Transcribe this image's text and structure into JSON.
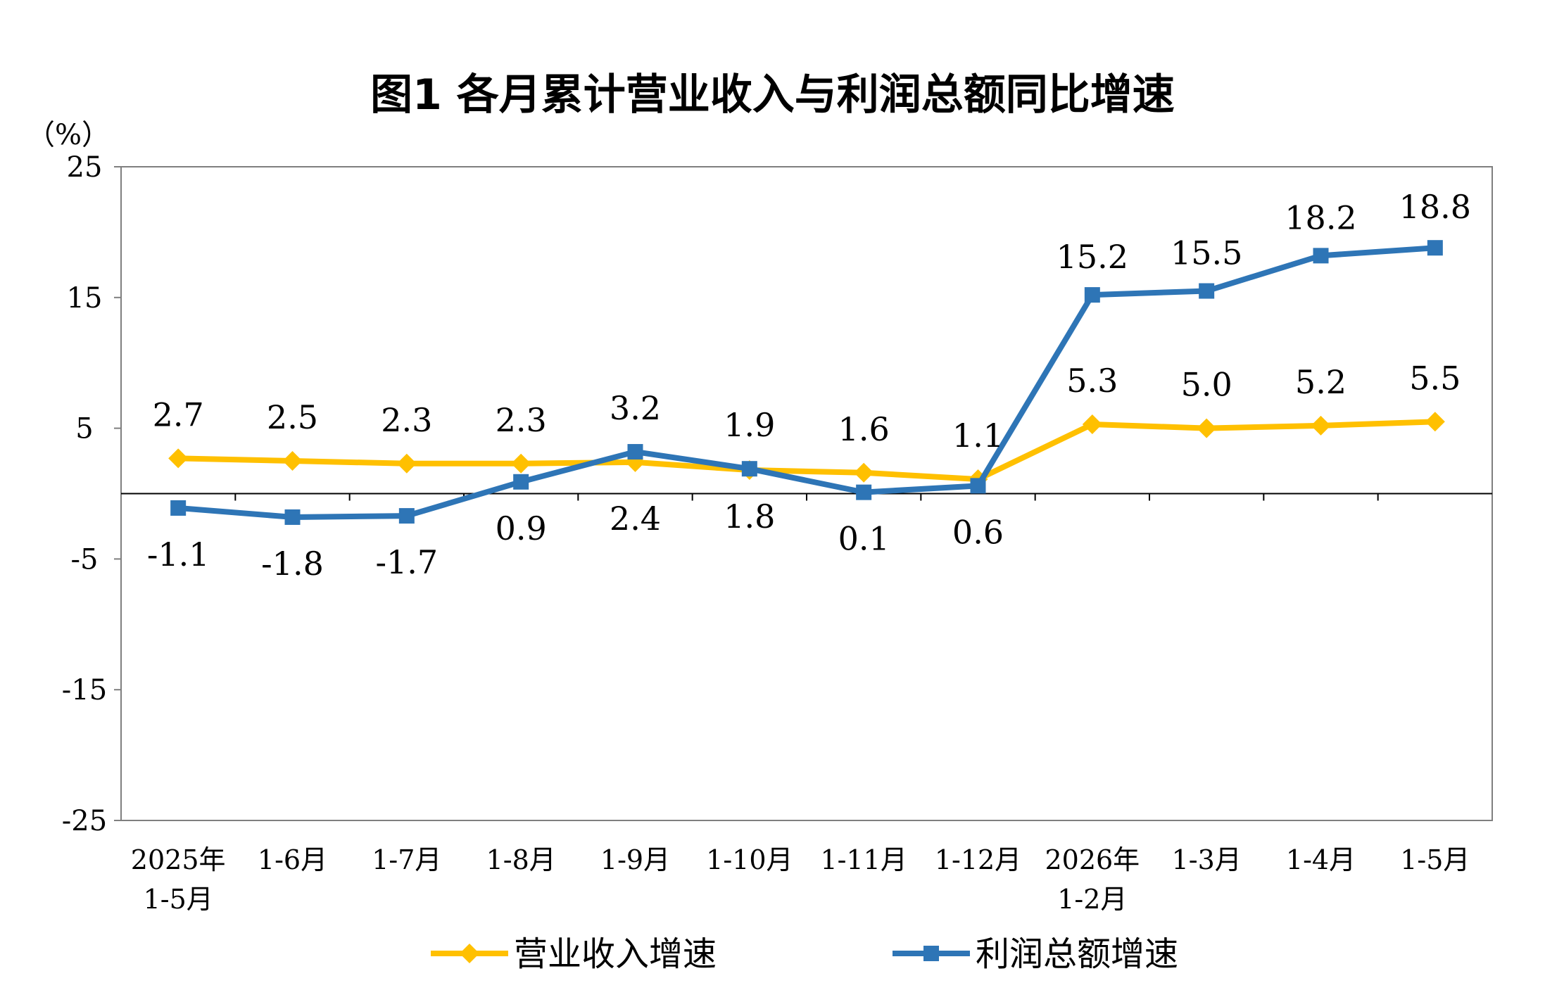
{
  "chart_data": {
    "type": "line",
    "title": "图1  各月累计营业收入与利润总额同比增速",
    "ylabel": "（%）",
    "ylim": [
      -25,
      25
    ],
    "yticks": [
      "25",
      "15",
      "5",
      "-5",
      "-15",
      "-25"
    ],
    "ytick_values": [
      25,
      15,
      5,
      -5,
      -15,
      -25
    ],
    "categories": [
      [
        "2025年",
        "1-5月"
      ],
      [
        "1-6月"
      ],
      [
        "1-7月"
      ],
      [
        "1-8月"
      ],
      [
        "1-9月"
      ],
      [
        "1-10月"
      ],
      [
        "1-11月"
      ],
      [
        "1-12月"
      ],
      [
        "2026年",
        "1-2月"
      ],
      [
        "1-3月"
      ],
      [
        "1-4月"
      ],
      [
        "1-5月"
      ]
    ],
    "series": [
      {
        "name": "营业收入增速",
        "color": "#FFC000",
        "marker": "diamond",
        "values": [
          2.7,
          2.5,
          2.3,
          2.3,
          2.4,
          1.8,
          1.6,
          1.1,
          5.3,
          5.0,
          5.2,
          5.5
        ],
        "labels": [
          "2.7",
          "2.5",
          "2.3",
          "2.3",
          "2.4",
          "1.8",
          "1.6",
          "1.1",
          "5.3",
          "5.0",
          "5.2",
          "5.5"
        ]
      },
      {
        "name": "利润总额增速",
        "color": "#2E75B6",
        "marker": "square",
        "values": [
          -1.1,
          -1.8,
          -1.7,
          0.9,
          3.2,
          1.9,
          0.1,
          0.6,
          15.2,
          15.5,
          18.2,
          18.8
        ],
        "labels": [
          "-1.1",
          "-1.8",
          "-1.7",
          "0.9",
          "3.2",
          "1.9",
          "0.1",
          "0.6",
          "15.2",
          "15.5",
          "18.2",
          "18.8"
        ]
      }
    ],
    "grid": false,
    "legend": "bottom"
  }
}
